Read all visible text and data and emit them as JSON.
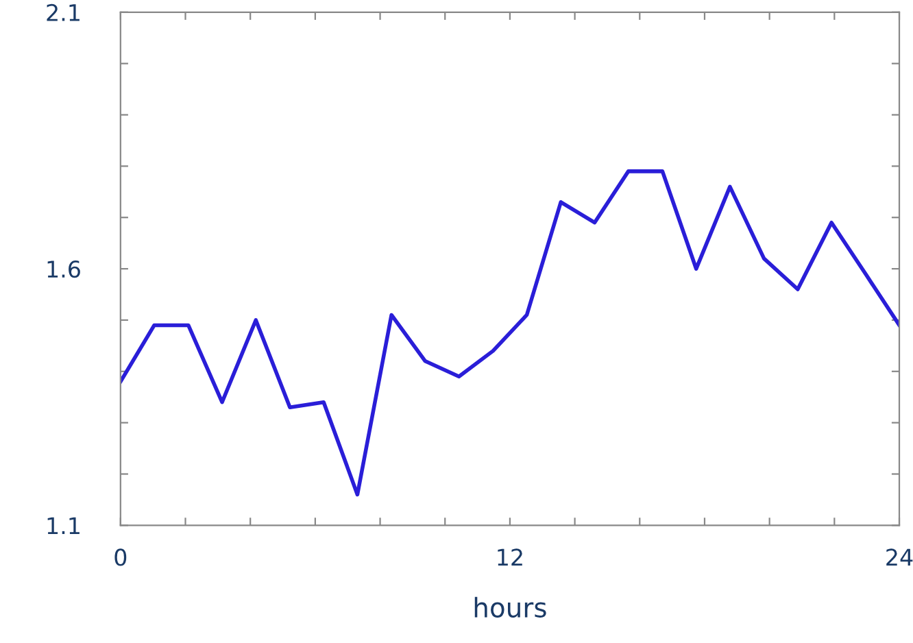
{
  "chart_data": {
    "type": "line",
    "xlabel": "hours",
    "x": [
      0,
      1.04,
      2.09,
      3.13,
      4.17,
      5.22,
      6.26,
      7.3,
      8.35,
      9.39,
      10.43,
      11.48,
      12.52,
      13.57,
      14.61,
      15.65,
      16.7,
      17.74,
      18.78,
      19.83,
      20.87,
      21.91,
      22.96,
      24
    ],
    "series": [
      {
        "color": "#2a1ed8",
        "values": [
          1.38,
          1.49,
          1.49,
          1.34,
          1.5,
          1.33,
          1.34,
          1.16,
          1.51,
          1.42,
          1.39,
          1.44,
          1.51,
          1.73,
          1.69,
          1.79,
          1.79,
          1.6,
          1.76,
          1.62,
          1.56,
          1.69,
          1.59,
          1.49
        ]
      }
    ],
    "xlim": [
      0,
      24
    ],
    "xticks": [
      0,
      {
        "value": 2,
        "label": null
      },
      {
        "value": 4,
        "label": null
      },
      {
        "value": 6,
        "label": null
      },
      {
        "value": 8,
        "label": null
      },
      {
        "value": 10,
        "label": null
      },
      12,
      {
        "value": 14,
        "label": null
      },
      {
        "value": 16,
        "label": null
      },
      {
        "value": 18,
        "label": null
      },
      {
        "value": 20,
        "label": null
      },
      {
        "value": 22,
        "label": null
      },
      24
    ],
    "ylim": [
      1.1,
      2.1
    ],
    "yticks": [
      1.1,
      {
        "value": 1.2,
        "label": null
      },
      {
        "value": 1.3,
        "label": null
      },
      {
        "value": 1.4,
        "label": null
      },
      {
        "value": 1.5,
        "label": null
      },
      1.6,
      {
        "value": 1.7,
        "label": null
      },
      {
        "value": 1.8,
        "label": null
      },
      {
        "value": 1.9,
        "label": null
      },
      {
        "value": 2.0,
        "label": null
      },
      2.1
    ],
    "grid": false,
    "marker": "none",
    "line_style": "solid"
  }
}
